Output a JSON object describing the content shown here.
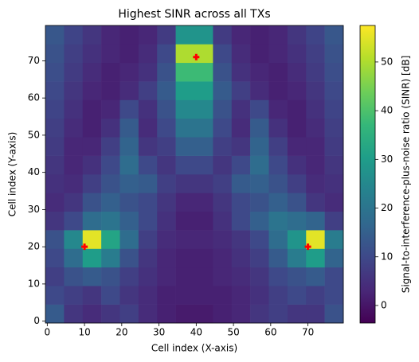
{
  "chart_data": {
    "type": "heatmap",
    "title": "Highest SINR across all TXs",
    "x_label": "Cell index (X-axis)",
    "y_label": "Cell index (Y-axis)",
    "colorbar_label": "Signal-to-interference-plus-noise ratio (SINR) [dB]",
    "colormap": "viridis",
    "xlim": [
      -0.5,
      79.5
    ],
    "ylim": [
      -0.5,
      79.5
    ],
    "xticks": [
      0,
      10,
      20,
      30,
      40,
      50,
      60,
      70
    ],
    "yticks": [
      0,
      10,
      20,
      30,
      40,
      50,
      60,
      70
    ],
    "clim": [
      -3.6,
      57.5
    ],
    "cticks": [
      0,
      10,
      20,
      30,
      40,
      50
    ],
    "z": [
      [
        14,
        6,
        4,
        6,
        8,
        4,
        2,
        1,
        1,
        2,
        3,
        6,
        8,
        6,
        6,
        12
      ],
      [
        10,
        8,
        6,
        10,
        6,
        4,
        2,
        2,
        2,
        2,
        3,
        5,
        8,
        10,
        8,
        10
      ],
      [
        8,
        12,
        14,
        12,
        8,
        5,
        3,
        2,
        2,
        3,
        4,
        6,
        10,
        12,
        14,
        10
      ],
      [
        10,
        18,
        30,
        22,
        12,
        6,
        3,
        2,
        2,
        3,
        5,
        8,
        14,
        22,
        30,
        16
      ],
      [
        12,
        25,
        55,
        32,
        18,
        8,
        4,
        3,
        3,
        4,
        6,
        10,
        18,
        28,
        55,
        22
      ],
      [
        6,
        10,
        18,
        20,
        15,
        10,
        5,
        2,
        2,
        5,
        10,
        15,
        20,
        18,
        16,
        8
      ],
      [
        4,
        6,
        12,
        15,
        12,
        10,
        6,
        3,
        3,
        6,
        10,
        12,
        15,
        12,
        6,
        4
      ],
      [
        5,
        4,
        8,
        12,
        15,
        14,
        8,
        6,
        6,
        8,
        14,
        15,
        12,
        8,
        4,
        5
      ],
      [
        6,
        3,
        5,
        10,
        18,
        10,
        6,
        10,
        10,
        6,
        10,
        18,
        10,
        5,
        3,
        6
      ],
      [
        7,
        3,
        3,
        8,
        16,
        6,
        8,
        15,
        15,
        8,
        6,
        16,
        8,
        3,
        3,
        7
      ],
      [
        8,
        4,
        2,
        5,
        14,
        4,
        10,
        20,
        20,
        10,
        4,
        14,
        5,
        2,
        4,
        8
      ],
      [
        9,
        5,
        2,
        3,
        10,
        5,
        12,
        25,
        25,
        12,
        5,
        10,
        3,
        2,
        5,
        9
      ],
      [
        10,
        6,
        3,
        2,
        4,
        8,
        14,
        30,
        30,
        14,
        8,
        4,
        2,
        3,
        6,
        10
      ],
      [
        11,
        7,
        4,
        2,
        3,
        5,
        12,
        38,
        38,
        12,
        5,
        3,
        2,
        4,
        7,
        11
      ],
      [
        12,
        8,
        5,
        3,
        2,
        4,
        10,
        50,
        50,
        10,
        4,
        2,
        3,
        5,
        8,
        12
      ],
      [
        13,
        9,
        6,
        3,
        2,
        3,
        7,
        28,
        28,
        7,
        3,
        2,
        3,
        6,
        9,
        13
      ]
    ],
    "markers": {
      "color": "#ff0000",
      "x": [
        10,
        40,
        70
      ],
      "y": [
        20,
        71,
        20
      ]
    }
  }
}
